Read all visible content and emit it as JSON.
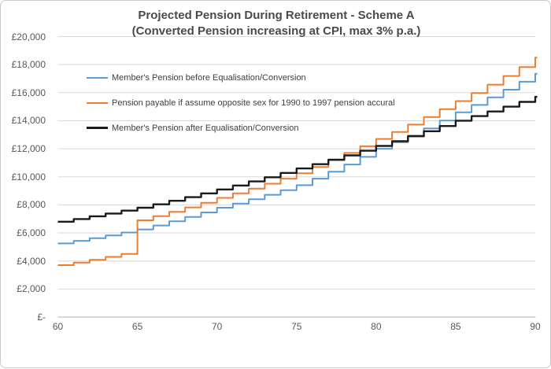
{
  "chart_data": {
    "type": "line",
    "line_style": "step",
    "title": "Projected Pension During Retirement - Scheme A",
    "subtitle": "(Converted Pension increasing at CPI, max 3% p.a.)",
    "currency": "GBP",
    "grid": true,
    "legend_position": "inside-top-left",
    "xlabel": "",
    "ylabel": "",
    "xlim": [
      60,
      90
    ],
    "ylim": [
      0,
      20000
    ],
    "x": [
      60,
      61,
      62,
      63,
      64,
      65,
      66,
      67,
      68,
      69,
      70,
      71,
      72,
      73,
      74,
      75,
      76,
      77,
      78,
      79,
      80,
      81,
      82,
      83,
      84,
      85,
      86,
      87,
      88,
      89,
      90
    ],
    "x_ticks": [
      {
        "v": 60,
        "label": "60"
      },
      {
        "v": 65,
        "label": "65"
      },
      {
        "v": 70,
        "label": "70"
      },
      {
        "v": 75,
        "label": "75"
      },
      {
        "v": 80,
        "label": "80"
      },
      {
        "v": 85,
        "label": "85"
      },
      {
        "v": 90,
        "label": "90"
      }
    ],
    "y_ticks": [
      {
        "v": 20000,
        "label": "£20,000"
      },
      {
        "v": 18000,
        "label": "£18,000"
      },
      {
        "v": 16000,
        "label": "£16,000"
      },
      {
        "v": 14000,
        "label": "£14,000"
      },
      {
        "v": 12000,
        "label": "£12,000"
      },
      {
        "v": 10000,
        "label": "£10,000"
      },
      {
        "v": 8000,
        "label": "£8,000"
      },
      {
        "v": 6000,
        "label": "£6,000"
      },
      {
        "v": 4000,
        "label": "£4,000"
      },
      {
        "v": 2000,
        "label": "£2,000"
      },
      {
        "v": 0,
        "label": "£-"
      }
    ],
    "series": [
      {
        "name": "Member's Pension before Equalisation/Conversion",
        "color": "#5B9BD5",
        "values": [
          5250,
          5435,
          5625,
          5825,
          6030,
          6250,
          6530,
          6825,
          7135,
          7460,
          7800,
          8095,
          8400,
          8720,
          9050,
          9400,
          9870,
          10360,
          10880,
          11420,
          12000,
          12465,
          12950,
          13455,
          14015,
          14600,
          15125,
          15670,
          16215,
          16780,
          17350
        ]
      },
      {
        "name": "Pension payable if assume opposite sex for 1990 to 1997 pension accural",
        "color": "#ED7D31",
        "values": [
          3700,
          3890,
          4085,
          4290,
          4500,
          6900,
          7195,
          7500,
          7820,
          8150,
          8500,
          8825,
          9160,
          9510,
          9870,
          10250,
          10700,
          11250,
          11700,
          12180,
          12700,
          13200,
          13720,
          14260,
          14820,
          15400,
          15975,
          16570,
          17190,
          17830,
          18500
        ]
      },
      {
        "name": "Member's Pension after Equalisation/Conversion",
        "color": "#1A1A1A",
        "values": [
          6800,
          6990,
          7185,
          7385,
          7590,
          7800,
          8040,
          8290,
          8550,
          8820,
          9100,
          9380,
          9670,
          9970,
          10280,
          10600,
          10900,
          11210,
          11530,
          11860,
          12200,
          12540,
          12890,
          13250,
          13620,
          14000,
          14330,
          14660,
          15000,
          15345,
          15700
        ]
      }
    ],
    "colors": {
      "gridline": "#D9D9D9",
      "axis_line": "#C0C0C0",
      "tick_label": "#595959",
      "title": "#4A4A4A",
      "legend_text": "#404040",
      "frame_border": "#C9C9C9",
      "background": "#FFFFFF"
    }
  }
}
